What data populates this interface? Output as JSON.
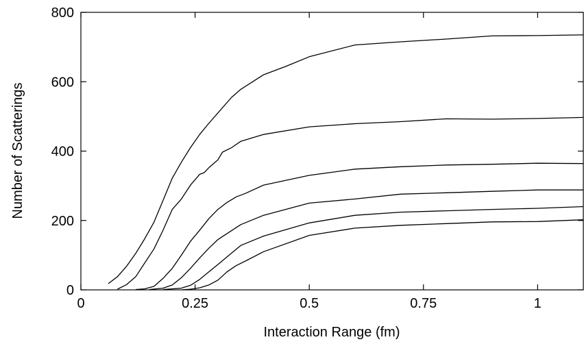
{
  "chart_data": {
    "type": "line",
    "title": "",
    "xlabel": "Interaction Range (fm)",
    "ylabel": "Number of Scatterings",
    "xlim": [
      0,
      1.1
    ],
    "ylim": [
      0,
      800
    ],
    "grid": false,
    "legend": "none",
    "x_ticks": [
      {
        "value": 0,
        "label": "0"
      },
      {
        "value": 0.25,
        "label": "0.25"
      },
      {
        "value": 0.5,
        "label": "0.5"
      },
      {
        "value": 0.75,
        "label": "0.75"
      },
      {
        "value": 1,
        "label": "1"
      }
    ],
    "y_ticks": [
      {
        "value": 0,
        "label": "0"
      },
      {
        "value": 200,
        "label": "200"
      },
      {
        "value": 400,
        "label": "400"
      },
      {
        "value": 600,
        "label": "600"
      },
      {
        "value": 800,
        "label": "800"
      }
    ],
    "series": [
      {
        "points": [
          [
            0.06,
            18
          ],
          [
            0.08,
            38
          ],
          [
            0.1,
            68
          ],
          [
            0.12,
            105
          ],
          [
            0.14,
            148
          ],
          [
            0.16,
            195
          ],
          [
            0.18,
            258
          ],
          [
            0.2,
            322
          ],
          [
            0.22,
            368
          ],
          [
            0.24,
            410
          ],
          [
            0.26,
            448
          ],
          [
            0.28,
            480
          ],
          [
            0.3,
            510
          ],
          [
            0.33,
            555
          ],
          [
            0.35,
            578
          ],
          [
            0.4,
            620
          ],
          [
            0.45,
            645
          ],
          [
            0.5,
            672
          ],
          [
            0.6,
            706
          ],
          [
            0.7,
            715
          ],
          [
            0.8,
            723
          ],
          [
            0.9,
            732
          ],
          [
            1.0,
            733
          ],
          [
            1.1,
            735
          ]
        ]
      },
      {
        "points": [
          [
            0.08,
            2
          ],
          [
            0.1,
            15
          ],
          [
            0.12,
            38
          ],
          [
            0.14,
            78
          ],
          [
            0.16,
            118
          ],
          [
            0.18,
            172
          ],
          [
            0.2,
            232
          ],
          [
            0.22,
            262
          ],
          [
            0.24,
            302
          ],
          [
            0.26,
            333
          ],
          [
            0.27,
            338
          ],
          [
            0.28,
            352
          ],
          [
            0.3,
            375
          ],
          [
            0.31,
            397
          ],
          [
            0.33,
            410
          ],
          [
            0.35,
            428
          ],
          [
            0.4,
            448
          ],
          [
            0.5,
            470
          ],
          [
            0.6,
            479
          ],
          [
            0.7,
            485
          ],
          [
            0.8,
            493
          ],
          [
            0.9,
            492
          ],
          [
            1.0,
            494
          ],
          [
            1.1,
            497
          ]
        ]
      },
      {
        "points": [
          [
            0.12,
            1
          ],
          [
            0.14,
            3
          ],
          [
            0.16,
            10
          ],
          [
            0.18,
            33
          ],
          [
            0.2,
            62
          ],
          [
            0.22,
            100
          ],
          [
            0.24,
            140
          ],
          [
            0.26,
            172
          ],
          [
            0.28,
            205
          ],
          [
            0.3,
            232
          ],
          [
            0.32,
            252
          ],
          [
            0.34,
            268
          ],
          [
            0.36,
            278
          ],
          [
            0.4,
            302
          ],
          [
            0.5,
            330
          ],
          [
            0.6,
            348
          ],
          [
            0.7,
            355
          ],
          [
            0.8,
            360
          ],
          [
            0.9,
            362
          ],
          [
            1.0,
            365
          ],
          [
            1.1,
            364
          ]
        ]
      },
      {
        "points": [
          [
            0.15,
            1
          ],
          [
            0.18,
            5
          ],
          [
            0.2,
            14
          ],
          [
            0.22,
            35
          ],
          [
            0.24,
            62
          ],
          [
            0.26,
            92
          ],
          [
            0.28,
            120
          ],
          [
            0.3,
            145
          ],
          [
            0.35,
            188
          ],
          [
            0.4,
            215
          ],
          [
            0.5,
            250
          ],
          [
            0.6,
            262
          ],
          [
            0.7,
            276
          ],
          [
            0.8,
            280
          ],
          [
            0.9,
            284
          ],
          [
            1.0,
            288
          ],
          [
            1.1,
            288
          ]
        ]
      },
      {
        "points": [
          [
            0.18,
            1
          ],
          [
            0.22,
            5
          ],
          [
            0.24,
            13
          ],
          [
            0.26,
            30
          ],
          [
            0.28,
            52
          ],
          [
            0.3,
            73
          ],
          [
            0.32,
            95
          ],
          [
            0.35,
            128
          ],
          [
            0.4,
            155
          ],
          [
            0.5,
            193
          ],
          [
            0.6,
            215
          ],
          [
            0.7,
            224
          ],
          [
            0.8,
            228
          ],
          [
            0.9,
            232
          ],
          [
            1.0,
            235
          ],
          [
            1.1,
            240
          ]
        ]
      },
      {
        "points": [
          [
            0.22,
            0
          ],
          [
            0.24,
            2
          ],
          [
            0.26,
            6
          ],
          [
            0.28,
            14
          ],
          [
            0.3,
            28
          ],
          [
            0.32,
            52
          ],
          [
            0.34,
            70
          ],
          [
            0.36,
            83
          ],
          [
            0.4,
            110
          ],
          [
            0.5,
            157
          ],
          [
            0.6,
            178
          ],
          [
            0.7,
            186
          ],
          [
            0.8,
            191
          ],
          [
            0.9,
            196
          ],
          [
            1.0,
            197
          ],
          [
            1.1,
            202
          ]
        ]
      }
    ]
  }
}
